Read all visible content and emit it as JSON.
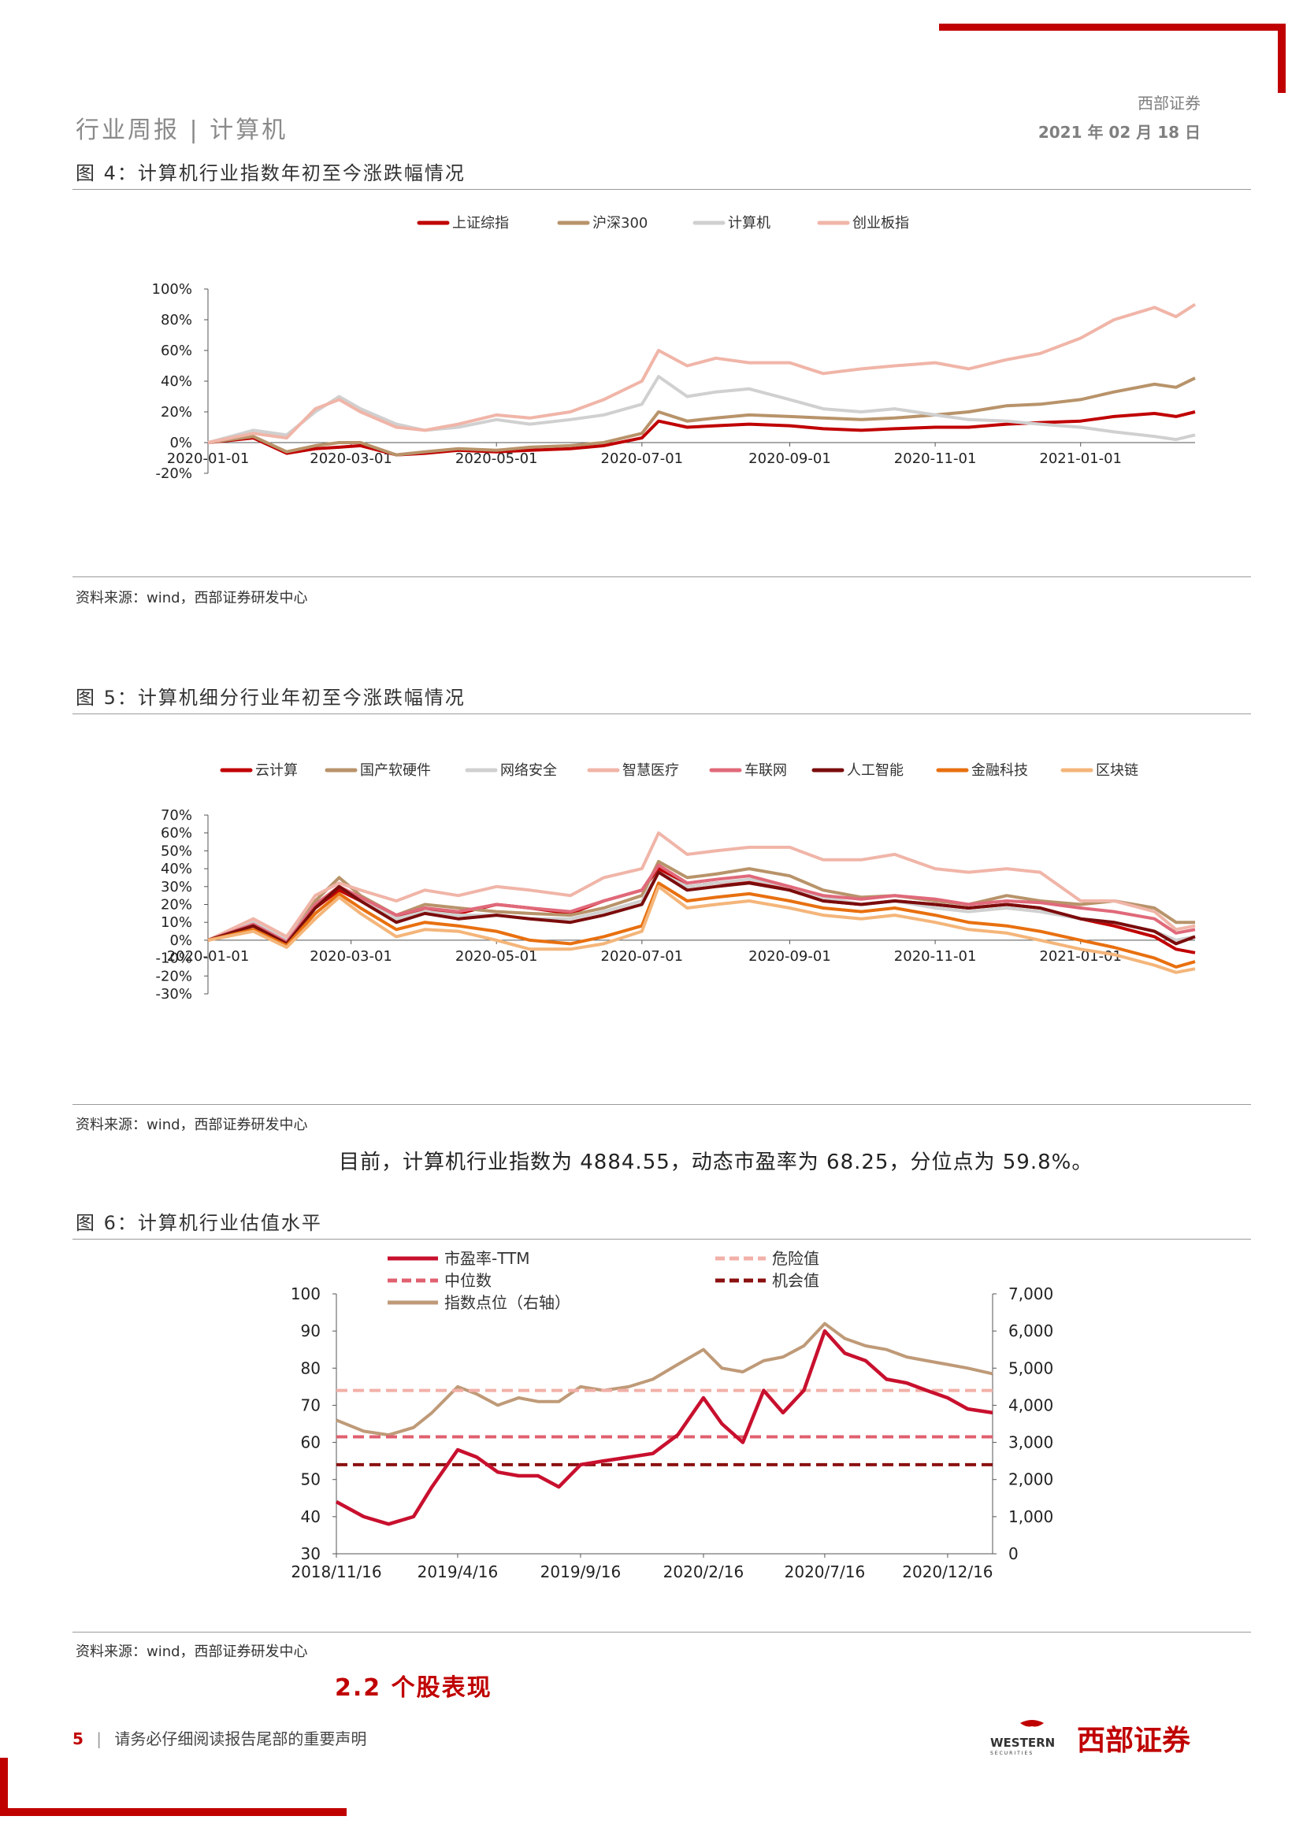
{
  "header": {
    "left": "行业周报 | 计算机",
    "company": "西部证券",
    "date": "2021 年 02 月 18 日"
  },
  "fig4": {
    "title": "图 4：计算机行业指数年初至今涨跌幅情况",
    "source": "资料来源：wind，西部证券研发中心",
    "chart_data": {
      "type": "line",
      "x_ticks": [
        "2020-01-01",
        "2020-03-01",
        "2020-05-01",
        "2020-07-01",
        "2020-09-01",
        "2020-11-01",
        "2021-01-01"
      ],
      "y_ticks": [
        "100%",
        "80%",
        "60%",
        "40%",
        "20%",
        "0%",
        "-20%"
      ],
      "ylim": [
        -20,
        100
      ],
      "legend_position": "top",
      "x": [
        "2020-01-01",
        "2020-01-20",
        "2020-02-03",
        "2020-02-15",
        "2020-02-25",
        "2020-03-05",
        "2020-03-20",
        "2020-04-01",
        "2020-04-15",
        "2020-05-01",
        "2020-05-15",
        "2020-06-01",
        "2020-06-15",
        "2020-07-01",
        "2020-07-08",
        "2020-07-20",
        "2020-08-01",
        "2020-08-15",
        "2020-09-01",
        "2020-09-15",
        "2020-10-01",
        "2020-10-15",
        "2020-11-01",
        "2020-11-15",
        "2020-12-01",
        "2020-12-15",
        "2021-01-01",
        "2021-01-15",
        "2021-02-01",
        "2021-02-10",
        "2021-02-18"
      ],
      "series": [
        {
          "name": "上证综指",
          "color": "#c00000",
          "values": [
            0,
            3,
            -7,
            -4,
            -3,
            -2,
            -8,
            -7,
            -5,
            -6,
            -5,
            -4,
            -2,
            3,
            14,
            10,
            11,
            12,
            11,
            9,
            8,
            9,
            10,
            10,
            12,
            13,
            14,
            17,
            19,
            17,
            20
          ]
        },
        {
          "name": "沪深300",
          "color": "#b8936a",
          "values": [
            0,
            4,
            -6,
            -2,
            0,
            0,
            -8,
            -6,
            -4,
            -5,
            -3,
            -2,
            0,
            6,
            20,
            14,
            16,
            18,
            17,
            16,
            15,
            16,
            18,
            20,
            24,
            25,
            28,
            33,
            38,
            36,
            42
          ]
        },
        {
          "name": "计算机",
          "color": "#d0d0d0",
          "values": [
            0,
            8,
            5,
            20,
            30,
            22,
            12,
            8,
            10,
            15,
            12,
            15,
            18,
            25,
            43,
            30,
            33,
            35,
            28,
            22,
            20,
            22,
            18,
            15,
            14,
            12,
            10,
            7,
            4,
            2,
            5
          ]
        },
        {
          "name": "创业板指",
          "color": "#f0b5a8",
          "values": [
            0,
            6,
            3,
            22,
            28,
            20,
            10,
            8,
            12,
            18,
            16,
            20,
            28,
            40,
            60,
            50,
            55,
            52,
            52,
            45,
            48,
            50,
            52,
            48,
            54,
            58,
            68,
            80,
            88,
            82,
            90
          ]
        }
      ]
    }
  },
  "fig5": {
    "title": "图 5：计算机细分行业年初至今涨跌幅情况",
    "source": "资料来源：wind，西部证券研发中心",
    "chart_data": {
      "type": "line",
      "x_ticks": [
        "2020-01-01",
        "2020-03-01",
        "2020-05-01",
        "2020-07-01",
        "2020-09-01",
        "2020-11-01",
        "2021-01-01"
      ],
      "y_ticks": [
        "70%",
        "60%",
        "50%",
        "40%",
        "30%",
        "20%",
        "10%",
        "0%",
        "-10%",
        "-20%",
        "-30%"
      ],
      "ylim": [
        -30,
        70
      ],
      "legend_position": "top",
      "x": [
        "2020-01-01",
        "2020-01-20",
        "2020-02-03",
        "2020-02-15",
        "2020-02-25",
        "2020-03-05",
        "2020-03-20",
        "2020-04-01",
        "2020-04-15",
        "2020-05-01",
        "2020-05-15",
        "2020-06-01",
        "2020-06-15",
        "2020-07-01",
        "2020-07-08",
        "2020-07-20",
        "2020-08-01",
        "2020-08-15",
        "2020-09-01",
        "2020-09-15",
        "2020-10-01",
        "2020-10-15",
        "2020-11-01",
        "2020-11-15",
        "2020-12-01",
        "2020-12-15",
        "2021-01-01",
        "2021-01-15",
        "2021-02-01",
        "2021-02-10",
        "2021-02-18"
      ],
      "series": [
        {
          "name": "云计算",
          "color": "#c00000",
          "values": [
            0,
            8,
            -2,
            18,
            28,
            22,
            12,
            18,
            15,
            20,
            18,
            15,
            22,
            28,
            40,
            30,
            32,
            33,
            28,
            22,
            20,
            22,
            20,
            18,
            20,
            18,
            12,
            8,
            2,
            -5,
            -7
          ]
        },
        {
          "name": "国产软硬件",
          "color": "#b8936a",
          "values": [
            0,
            10,
            0,
            22,
            35,
            25,
            14,
            20,
            18,
            16,
            15,
            14,
            18,
            25,
            44,
            35,
            37,
            40,
            36,
            28,
            24,
            25,
            22,
            20,
            25,
            22,
            20,
            22,
            18,
            10,
            10
          ]
        },
        {
          "name": "网络安全",
          "color": "#d0d0d0",
          "values": [
            0,
            10,
            0,
            20,
            30,
            22,
            12,
            16,
            14,
            14,
            12,
            12,
            16,
            22,
            38,
            30,
            32,
            34,
            30,
            24,
            20,
            22,
            18,
            16,
            18,
            16,
            12,
            10,
            5,
            0,
            2
          ]
        },
        {
          "name": "智慧医疗",
          "color": "#f0b5a8",
          "values": [
            0,
            12,
            2,
            25,
            32,
            28,
            22,
            28,
            25,
            30,
            28,
            25,
            35,
            40,
            60,
            48,
            50,
            52,
            52,
            45,
            45,
            48,
            40,
            38,
            40,
            38,
            22,
            22,
            16,
            6,
            8
          ]
        },
        {
          "name": "车联网",
          "color": "#e0697a",
          "values": [
            0,
            9,
            -1,
            20,
            30,
            24,
            14,
            18,
            16,
            20,
            18,
            16,
            22,
            28,
            42,
            32,
            34,
            36,
            30,
            25,
            23,
            25,
            23,
            20,
            22,
            21,
            18,
            16,
            12,
            4,
            6
          ]
        },
        {
          "name": "人工智能",
          "color": "#7b0c0c",
          "values": [
            0,
            8,
            -2,
            18,
            30,
            22,
            10,
            15,
            12,
            14,
            12,
            10,
            14,
            20,
            38,
            28,
            30,
            32,
            28,
            22,
            20,
            22,
            20,
            18,
            20,
            18,
            12,
            10,
            5,
            -2,
            2
          ]
        },
        {
          "name": "金融科技",
          "color": "#e87010",
          "values": [
            0,
            6,
            -3,
            15,
            26,
            18,
            6,
            10,
            8,
            5,
            0,
            -2,
            2,
            8,
            32,
            22,
            24,
            26,
            22,
            18,
            16,
            18,
            14,
            10,
            8,
            5,
            0,
            -4,
            -10,
            -15,
            -12
          ]
        },
        {
          "name": "区块链",
          "color": "#f4b57a",
          "values": [
            0,
            5,
            -4,
            12,
            24,
            15,
            2,
            6,
            5,
            0,
            -5,
            -5,
            -2,
            5,
            30,
            18,
            20,
            22,
            18,
            14,
            12,
            14,
            10,
            6,
            4,
            0,
            -5,
            -8,
            -14,
            -18,
            -16
          ]
        }
      ]
    }
  },
  "paragraph": "目前，计算机行业指数为 4884.55，动态市盈率为 68.25，分位点为 59.8%。",
  "fig6": {
    "title": "图 6：计算机行业估值水平",
    "source": "资料来源：wind，西部证券研发中心",
    "chart_data": {
      "type": "line",
      "x_ticks": [
        "2018/11/16",
        "2019/4/16",
        "2019/9/16",
        "2020/2/16",
        "2020/7/16",
        "2020/12/16"
      ],
      "y_ticks_left": [
        "100",
        "90",
        "80",
        "70",
        "60",
        "50",
        "40",
        "30"
      ],
      "y_ticks_right": [
        "7,000",
        "6,000",
        "5,000",
        "4,000",
        "3,000",
        "2,000",
        "1,000",
        "0"
      ],
      "ylim_left": [
        30,
        100
      ],
      "ylim_right": [
        0,
        7000
      ],
      "legend_position": "top",
      "x": [
        "2018-11-16",
        "2018-12-20",
        "2019-01-20",
        "2019-02-20",
        "2019-03-15",
        "2019-04-16",
        "2019-05-10",
        "2019-06-05",
        "2019-07-01",
        "2019-07-25",
        "2019-08-20",
        "2019-09-16",
        "2019-10-15",
        "2019-11-15",
        "2019-12-15",
        "2020-01-15",
        "2020-02-16",
        "2020-03-10",
        "2020-04-05",
        "2020-05-01",
        "2020-05-25",
        "2020-06-20",
        "2020-07-16",
        "2020-08-10",
        "2020-09-05",
        "2020-10-01",
        "2020-10-26",
        "2020-11-20",
        "2020-12-16",
        "2021-01-10",
        "2021-02-10"
      ],
      "series": [
        {
          "name": "市盈率-TTM",
          "color": "#c8102e",
          "axis": "left",
          "values": [
            44,
            40,
            38,
            40,
            48,
            58,
            56,
            52,
            51,
            51,
            48,
            54,
            55,
            56,
            57,
            62,
            72,
            65,
            60,
            74,
            68,
            74,
            90,
            84,
            82,
            77,
            76,
            74,
            72,
            69,
            68
          ]
        },
        {
          "name": "危险值",
          "color": "#f2b0a8",
          "axis": "left",
          "dashed": true,
          "value": 74
        },
        {
          "name": "中位数",
          "color": "#e06070",
          "axis": "left",
          "dashed": true,
          "value": 61.5
        },
        {
          "name": "机会值",
          "color": "#8b1010",
          "axis": "left",
          "dashed": true,
          "value": 54
        },
        {
          "name": "指数点位（右轴）",
          "color": "#bf9a78",
          "axis": "right",
          "values": [
            3600,
            3300,
            3200,
            3400,
            3800,
            4500,
            4300,
            4000,
            4200,
            4100,
            4100,
            4500,
            4400,
            4500,
            4700,
            5100,
            5500,
            5000,
            4900,
            5200,
            5300,
            5600,
            6200,
            5800,
            5600,
            5500,
            5300,
            5200,
            5100,
            5000,
            4850
          ]
        }
      ]
    }
  },
  "section": "2.2 个股表现",
  "footer": {
    "page": "5",
    "disclaimer": "请务必仔细阅读报告尾部的重要声明"
  },
  "logo": {
    "en": "WESTERN",
    "sub": "SECURITIES",
    "cn": "西部证券"
  }
}
